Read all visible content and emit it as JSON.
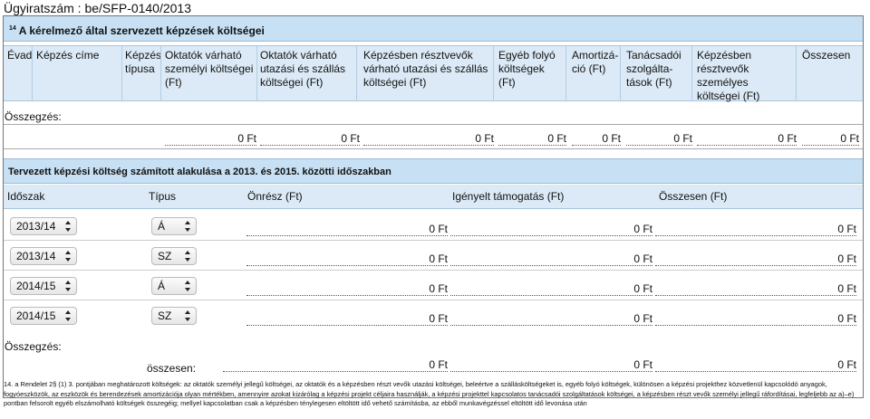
{
  "reference": "Ügyiratszám : be/SFP-0140/2013",
  "section1": {
    "footnote_mark": "14",
    "title": "A kérelmező által szervezett képzések költségei",
    "columns": [
      "Évad",
      "Képzés címe",
      "Képzés típusa",
      "Oktatók várható személyi költségei (Ft)",
      "Oktatók várható utazási és szállás költségei (Ft)",
      "Képzésben résztvevők várható utazási és szállás költségei (Ft)",
      "Egyéb folyó költségek (Ft)",
      "Amortizá-ció (Ft)",
      "Tanácsadói szolgálta-tások (Ft)",
      "Képzésben résztvevők személyes költségei (Ft)",
      "Összesen"
    ],
    "summary_label": "Összegzés:",
    "summary_values": [
      "0 Ft",
      "0 Ft",
      "0 Ft",
      "0 Ft",
      "0 Ft",
      "0 Ft",
      "0 Ft",
      "0 Ft"
    ]
  },
  "section2": {
    "title": "Tervezett képzési költség számított alakulása a 2013. és 2015. közötti időszakban",
    "columns": [
      "Időszak",
      "Típus",
      "Önrész (Ft)",
      "Igényelt támogatás (Ft)",
      "Összesen (Ft)"
    ],
    "rows": [
      {
        "period": "2013/14",
        "type": "Á",
        "own": "0 Ft",
        "requested": "0 Ft",
        "total": "0 Ft"
      },
      {
        "period": "2013/14",
        "type": "SZ",
        "own": "0 Ft",
        "requested": "0 Ft",
        "total": "0 Ft"
      },
      {
        "period": "2014/15",
        "type": "Á",
        "own": "0 Ft",
        "requested": "0 Ft",
        "total": "0 Ft"
      },
      {
        "period": "2014/15",
        "type": "SZ",
        "own": "0 Ft",
        "requested": "0 Ft",
        "total": "0 Ft"
      }
    ],
    "summary_label": "Összegzés:",
    "total_label": "összesen:",
    "totals": {
      "own": "0 Ft",
      "requested": "0 Ft",
      "total": "0 Ft"
    }
  },
  "footnote": "14. a Rendelet 2§ (1) 3. pontjában meghatározott költségek: az oktatók személyi jellegű költségei, az oktatók és a képzésben részt vevők utazási költségei, beleértve a szállásköltségeket is, egyéb folyó költségek, különösen a képzési projekthez közvetlenül kapcsolódó anyagok, fogyóeszközök, az eszközök és berendezések amortizációja olyan mértékben, amennyire azokat kizárólag a képzési projekt céljaira használják, a képzési projekttel kapcsolatos tanácsadói szolgáltatások költségei, a képzésben részt vevők személyi jellegű ráfordításai, legfeljebb az a)–e) pontban felsorolt egyéb elszámolható költségek összegéig; mellyel kapcsolatban csak a képzésben ténylegesen eltöltött idő vehető számításba, az ebből munkavégzéssel eltöltött idő levonása után"
}
